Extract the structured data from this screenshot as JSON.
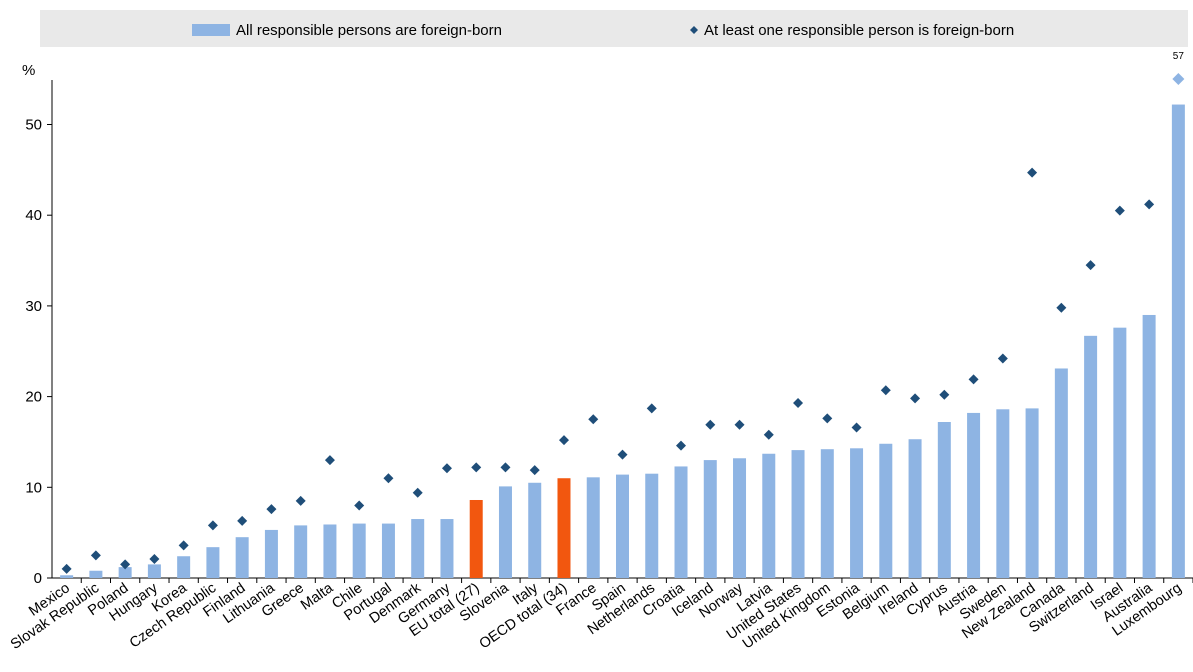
{
  "chart_data": {
    "type": "bar",
    "ylabel": "%",
    "ylim": [
      0,
      57
    ],
    "yticks": [
      0,
      10,
      20,
      30,
      40,
      50
    ],
    "grid": false,
    "legend_position": "top",
    "colors": {
      "bar": "#8eb4e3",
      "bar_highlight": "#f2570f",
      "marker": "#1f4e79",
      "marker_overflow": "#8eb4e3",
      "legend_bg": "#e9e9e9"
    },
    "categories": [
      "Mexico",
      "Slovak Republic",
      "Poland",
      "Hungary",
      "Korea",
      "Czech Republic",
      "Finland",
      "Lithuania",
      "Greece",
      "Malta",
      "Chile",
      "Portugal",
      "Denmark",
      "Germany",
      "EU total (27)",
      "Slovenia",
      "Italy",
      "OECD total (34)",
      "France",
      "Spain",
      "Netherlands",
      "Croatia",
      "Iceland",
      "Norway",
      "Latvia",
      "United States",
      "United Kingdom",
      "Estonia",
      "Belgium",
      "Ireland",
      "Cyprus",
      "Austria",
      "Sweden",
      "New Zealand",
      "Canada",
      "Switzerland",
      "Israel",
      "Australia",
      "Luxembourg"
    ],
    "highlight": [
      "EU total (27)",
      "OECD total (34)"
    ],
    "series": [
      {
        "name": "All responsible persons are foreign-born",
        "kind": "bar",
        "values": [
          0.3,
          0.8,
          1.2,
          1.5,
          2.4,
          3.4,
          4.5,
          5.3,
          5.8,
          5.9,
          6.0,
          6.0,
          6.5,
          6.5,
          8.6,
          10.1,
          10.5,
          11.0,
          11.1,
          11.4,
          11.5,
          12.3,
          13.0,
          13.2,
          13.7,
          14.1,
          14.2,
          14.3,
          14.8,
          15.3,
          17.2,
          18.2,
          18.6,
          18.7,
          23.1,
          26.7,
          27.6,
          29.0,
          52.2
        ]
      },
      {
        "name": "At least one responsible person is foreign-born",
        "kind": "marker",
        "values": [
          1.0,
          2.5,
          1.5,
          2.1,
          3.6,
          5.8,
          6.3,
          7.6,
          8.5,
          13.0,
          8.0,
          11.0,
          9.4,
          12.1,
          12.2,
          12.2,
          11.9,
          15.2,
          17.5,
          13.6,
          18.7,
          14.6,
          16.9,
          16.9,
          15.8,
          19.3,
          17.6,
          16.6,
          20.7,
          19.8,
          20.2,
          21.9,
          24.2,
          44.7,
          29.8,
          34.5,
          40.5,
          41.2,
          57
        ]
      }
    ],
    "annotations": [
      {
        "category": "Luxembourg",
        "series": "At least one responsible person is foreign-born",
        "text": "57"
      }
    ]
  }
}
